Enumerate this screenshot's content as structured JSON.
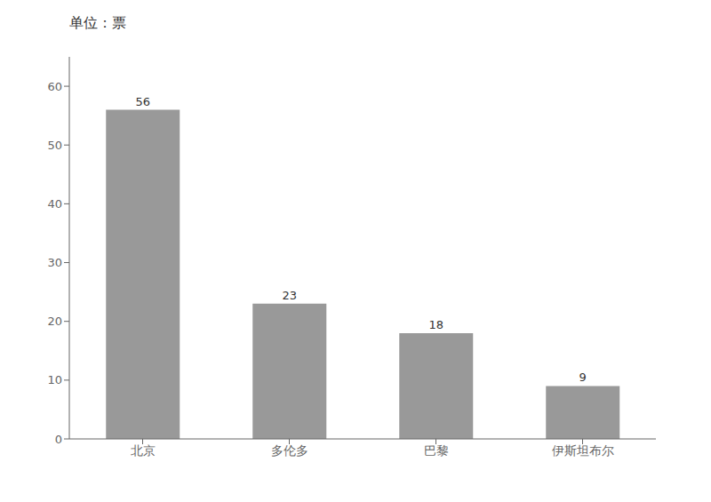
{
  "chart_data": {
    "type": "bar",
    "title": "单位：票",
    "categories": [
      "北京",
      "多伦多",
      "巴黎",
      "伊斯坦布尔"
    ],
    "values": [
      56,
      23,
      18,
      9
    ],
    "color": "#999999",
    "ylim": [
      0,
      65
    ],
    "yticks": [
      0,
      10,
      20,
      30,
      40,
      50,
      60
    ],
    "grid": false,
    "data_labels": true
  }
}
